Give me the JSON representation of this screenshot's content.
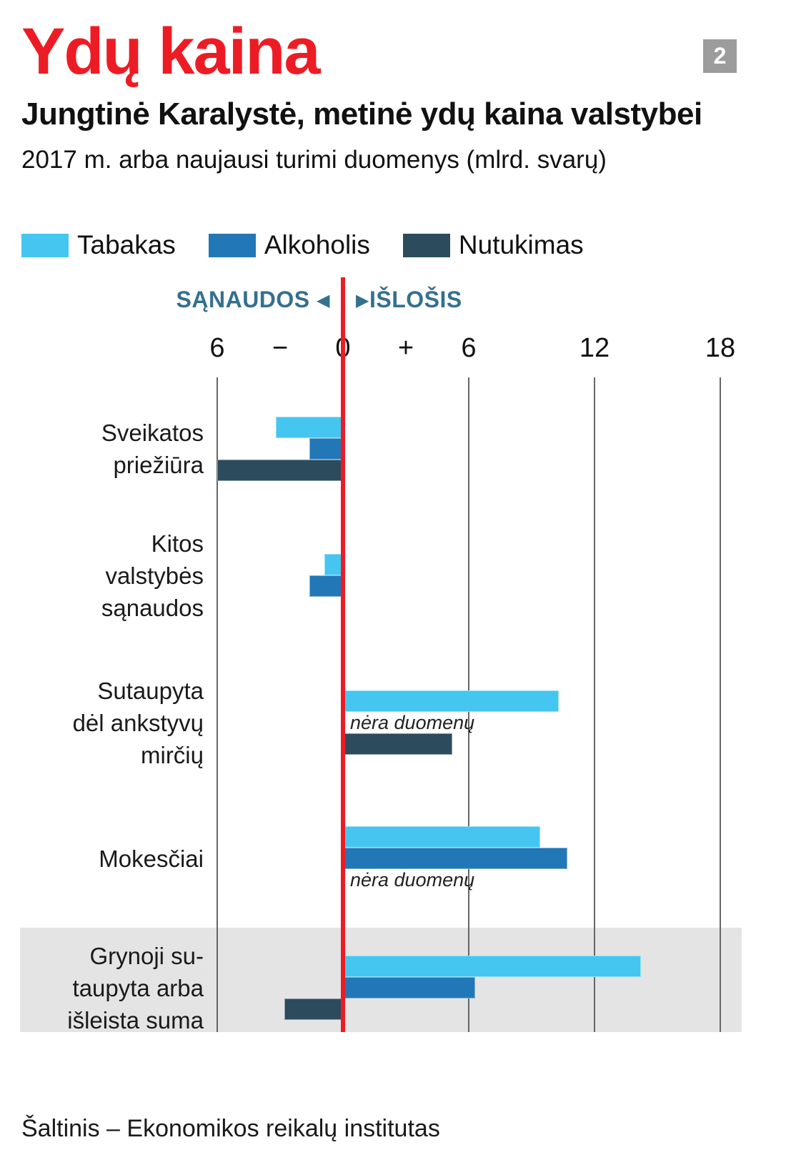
{
  "header": {
    "title": "Ydų kaina",
    "badge": "2",
    "subtitle": "Jungtinė Karalystė, metinė ydų kaina valstybei",
    "caption": "2017 m. arba naujausi turimi duomenys (mlrd. svarų)"
  },
  "axis": {
    "left_label": "SĄNAUDOS",
    "right_label": "IŠLOŠIS",
    "ticks": [
      {
        "label": "6",
        "value": -6,
        "grid": true
      },
      {
        "label": "−",
        "value": -3,
        "grid": false
      },
      {
        "label": "0",
        "value": 0,
        "grid": false
      },
      {
        "label": "+",
        "value": 3,
        "grid": false
      },
      {
        "label": "6",
        "value": 6,
        "grid": true
      },
      {
        "label": "12",
        "value": 12,
        "grid": true
      },
      {
        "label": "18",
        "value": 18,
        "grid": true
      }
    ]
  },
  "chart_data": {
    "type": "bar",
    "orientation": "horizontal",
    "unit": "mlrd. svarų",
    "xlim": [
      -6,
      18
    ],
    "no_data_label": "nėra duomenų",
    "series": [
      {
        "name": "Tabakas",
        "color": "#45c6f0"
      },
      {
        "name": "Alkoholis",
        "color": "#2277b6"
      },
      {
        "name": "Nutukimas",
        "color": "#2c4c5e"
      }
    ],
    "groups": [
      {
        "category": "Sveikatos priežiūra",
        "category_lines": [
          "Sveikatos",
          "priežiūra"
        ],
        "rows": [
          {
            "series": "Tabakas",
            "value": -3.2
          },
          {
            "series": "Alkoholis",
            "value": -1.6
          },
          {
            "series": "Nutukimas",
            "value": -6.0
          }
        ]
      },
      {
        "category": "Kitos valstybės sąnaudos",
        "category_lines": [
          "Kitos",
          "valstybės",
          "sąnaudos"
        ],
        "rows": [
          {
            "series": "Tabakas",
            "value": -0.9
          },
          {
            "series": "Alkoholis",
            "value": -1.6
          }
        ]
      },
      {
        "category": "Sutaupyta dėl ankstyvų mirčių",
        "category_lines": [
          "Sutaupyta",
          "dėl ankstyvų",
          "mirčių"
        ],
        "rows": [
          {
            "series": "Tabakas",
            "value": 10.3
          },
          {
            "series": "Alkoholis",
            "value": null,
            "note": "nėra duomenų"
          },
          {
            "series": "Nutukimas",
            "value": 5.2
          }
        ]
      },
      {
        "category": "Mokesčiai",
        "category_lines": [
          "Mokesčiai"
        ],
        "rows": [
          {
            "series": "Tabakas",
            "value": 9.4
          },
          {
            "series": "Alkoholis",
            "value": 10.7
          },
          {
            "series": "Nutukimas",
            "value": null,
            "note": "nėra duomenų"
          }
        ]
      },
      {
        "category": "Grynoji sutaupyta arba išleista suma",
        "category_lines": [
          "Grynoji su-",
          "taupyta arba",
          "išleista suma"
        ],
        "highlight": true,
        "rows": [
          {
            "series": "Tabakas",
            "value": 14.2
          },
          {
            "series": "Alkoholis",
            "value": 6.3
          },
          {
            "series": "Nutukimas",
            "value": -2.8
          }
        ]
      }
    ]
  },
  "colors": {
    "title": "#ed1c24",
    "zero_line": "#ed1c24",
    "direction_labels": "#34708f",
    "highlight_band": "#e4e4e4",
    "badge_bg": "#9c9c9c",
    "gridline": "#666666"
  },
  "source": "Šaltinis – Ekonomikos reikalų institutas"
}
